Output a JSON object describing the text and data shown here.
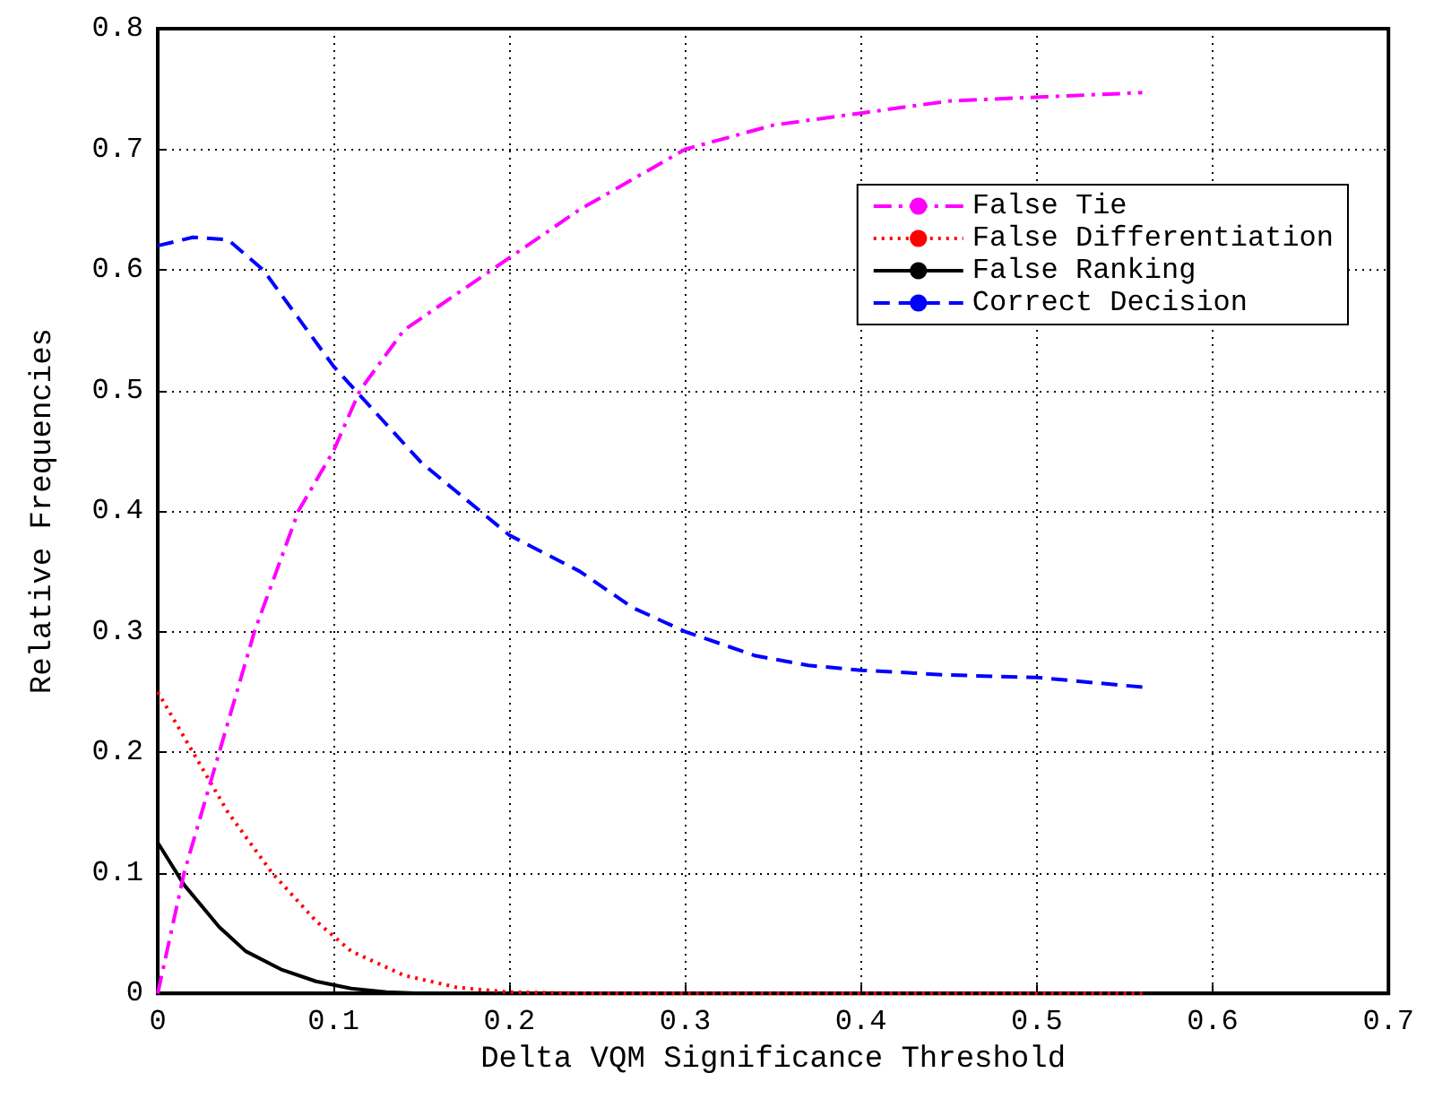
{
  "chart_data": {
    "type": "line",
    "xlabel": "Delta VQM Significance Threshold",
    "ylabel": "Relative Frequencies",
    "xlim": [
      0,
      0.7
    ],
    "ylim": [
      0,
      0.8
    ],
    "xticks": [
      0,
      0.1,
      0.2,
      0.3,
      0.4,
      0.5,
      0.6,
      0.7
    ],
    "yticks": [
      0,
      0.1,
      0.2,
      0.3,
      0.4,
      0.5,
      0.6,
      0.7,
      0.8
    ],
    "grid": true,
    "legend": "top right",
    "marker": "none",
    "series": [
      {
        "name": "False Tie",
        "color": "#ff00ff",
        "line_style": "dashdot",
        "x": [
          0,
          0.015,
          0.035,
          0.055,
          0.08,
          0.1,
          0.115,
          0.14,
          0.19,
          0.24,
          0.3,
          0.35,
          0.4,
          0.45,
          0.56
        ],
        "values": [
          0,
          0.1,
          0.2,
          0.3,
          0.4,
          0.45,
          0.5,
          0.55,
          0.6,
          0.65,
          0.7,
          0.72,
          0.73,
          0.74,
          0.747
        ]
      },
      {
        "name": "False Differentiation",
        "color": "#ff0000",
        "line_style": "dotted",
        "x": [
          0,
          0.02,
          0.04,
          0.065,
          0.09,
          0.11,
          0.14,
          0.17,
          0.2,
          0.25,
          0.56
        ],
        "values": [
          0.25,
          0.2,
          0.15,
          0.1,
          0.06,
          0.035,
          0.015,
          0.005,
          0.001,
          0,
          0
        ]
      },
      {
        "name": "False Ranking",
        "color": "#000000",
        "line_style": "solid",
        "x": [
          0,
          0.015,
          0.035,
          0.05,
          0.07,
          0.09,
          0.11,
          0.13,
          0.15,
          0.56
        ],
        "values": [
          0.125,
          0.09,
          0.055,
          0.035,
          0.02,
          0.01,
          0.004,
          0.001,
          0,
          0
        ]
      },
      {
        "name": "Correct Decision",
        "color": "#0000ff",
        "line_style": "dashed",
        "x": [
          0,
          0.02,
          0.04,
          0.06,
          0.08,
          0.1,
          0.125,
          0.15,
          0.175,
          0.2,
          0.24,
          0.27,
          0.3,
          0.34,
          0.37,
          0.4,
          0.45,
          0.5,
          0.56
        ],
        "values": [
          0.62,
          0.627,
          0.625,
          0.6,
          0.56,
          0.52,
          0.48,
          0.44,
          0.41,
          0.38,
          0.35,
          0.32,
          0.3,
          0.28,
          0.272,
          0.268,
          0.264,
          0.262,
          0.254
        ]
      }
    ]
  }
}
